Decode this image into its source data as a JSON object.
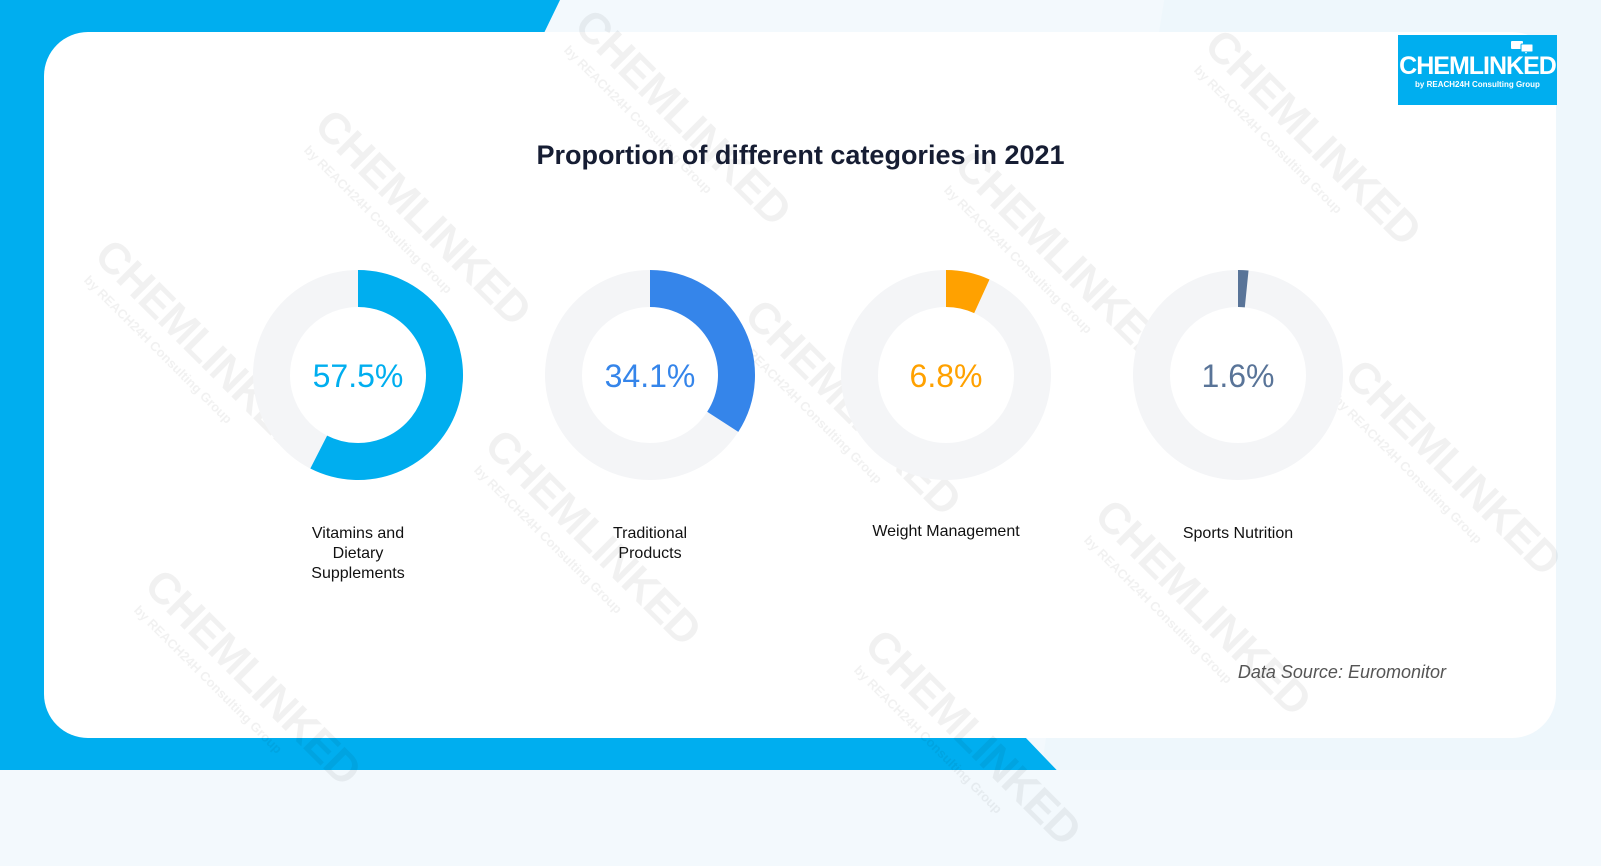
{
  "logo": {
    "main": "CHEMLINKED",
    "sub": "by REACH24H Consulting Group"
  },
  "watermark": {
    "main": "CHEMLINKED",
    "sub": "by REACH24H Consulting Group"
  },
  "colors": {
    "track": "#f4f5f7",
    "accent": "#00aeef"
  },
  "chart_data": {
    "type": "donut",
    "title": "Proportion of different categories in 2021",
    "series": [
      {
        "label": "Vitamins and Dietary Supplements",
        "label_lines": [
          "Vitamins and",
          "Dietary",
          "Supplements"
        ],
        "value": 57.5,
        "display": "57.5%",
        "color": "#00aeef"
      },
      {
        "label": "Traditional Products",
        "label_lines": [
          "Traditional",
          "Products"
        ],
        "value": 34.1,
        "display": "34.1%",
        "color": "#3585ea"
      },
      {
        "label": "Weight Management",
        "label_lines": [
          "Weight Management"
        ],
        "value": 6.8,
        "display": "6.8%",
        "color": "#ffa100"
      },
      {
        "label": "Sports Nutrition",
        "label_lines": [
          "Sports Nutrition"
        ],
        "value": 1.6,
        "display": "1.6%",
        "color": "#597498"
      }
    ],
    "source": "Data Source: Euromonitor"
  }
}
